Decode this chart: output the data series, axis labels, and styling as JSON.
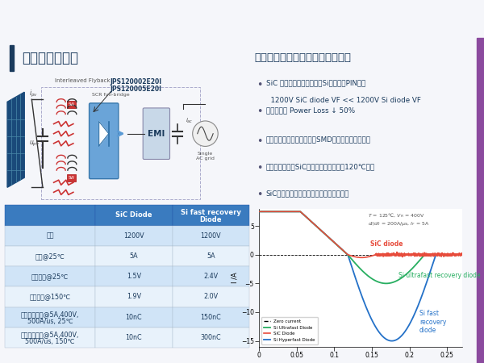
{
  "bg_color": "#f5f6fa",
  "slide_title": "微型逆变器方案",
  "title_bar_color": "#1a3a5c",
  "right_title": "微型逆变器中碳化硅二极管的优势",
  "right_title_color": "#1a3a5c",
  "bullet_points": [
    "SiC 二极管为肖特基结构，Si二极管为PIN结构\n  1200V SiC diode VF << 1200V Si diode VF",
    "输出二极管 Power Loss ↓ 50%",
    "较低的损耗和发热可以应用SMD器件，降低生产成本",
    "最大负载时贴片SiC二极管结温可控制在120℃以下",
    "SiC二极管几乎零反向恢复且不随温度变化"
  ],
  "bullet_color": "#1a3a5c",
  "table_header_bg": "#3a7bbf",
  "table_header_color": "#ffffff",
  "table_row_bg1": "#d0e4f7",
  "table_row_bg2": "#e8f2fb",
  "table_headers": [
    "",
    "SiC Diode",
    "Si fast recovery\nDiode"
  ],
  "table_rows": [
    [
      "电压",
      "1200V",
      "1200V"
    ],
    [
      "电流@25℃",
      "5A",
      "5A"
    ],
    [
      "导通电压@25℃",
      "1.5V",
      "2.4V"
    ],
    [
      "导通电压@150℃",
      "1.9V",
      "2.0V"
    ],
    [
      "反向恢复电荷@5A,400V,\n500A/us, 25℃",
      "10nC",
      "150nC"
    ],
    [
      "反向恢复电荷@5A,400V,\n500A/us, 150℃",
      "10nC",
      "300nC"
    ]
  ],
  "circuit_labels": [
    "JPS120002E20I",
    "JPS120005E20I"
  ],
  "circuit_sublabels": [
    "Interleaved Flyback",
    "SCR full-bridge"
  ],
  "right_accent_color": "#8b4a9e",
  "line_zero_color": "#000000",
  "line_sic_color": "#e74c3c",
  "line_si_ultra_color": "#27ae60",
  "line_si_hyper_color": "#2471c8",
  "annotation_sic": "SiC diode",
  "annotation_ultra": "Si ultrafast recovery diode",
  "annotation_fast": "Si fast\nrecovery\ndiode",
  "left_bg_color": "#eef3f9",
  "right_bg_color": "#ffffff",
  "top_bar_color": "#e0e4ea",
  "divider_color": "#3a7bbf",
  "circuit_bg_color": "#f0f5fa"
}
